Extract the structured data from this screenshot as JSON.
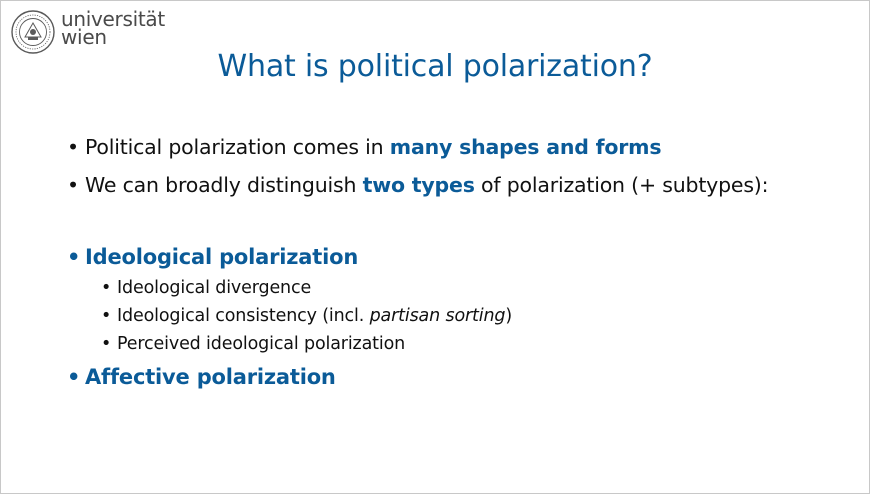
{
  "logo": {
    "line1": "universität",
    "line2": "wien"
  },
  "title": "What is political polarization?",
  "bullets": [
    {
      "pre": "Political polarization comes in ",
      "highlight": "many shapes and forms",
      "post": ""
    },
    {
      "pre": "We can broadly distinguish ",
      "highlight": "two types",
      "post": " of polarization (+ subtypes):"
    }
  ],
  "types": [
    {
      "heading": "Ideological polarization",
      "subitems": [
        {
          "pre": "Ideological divergence",
          "em": "",
          "post": ""
        },
        {
          "pre": "Ideological consistency (incl. ",
          "em": "partisan sorting",
          "post": ")"
        },
        {
          "pre": "Perceived ideological polarization",
          "em": "",
          "post": ""
        }
      ]
    },
    {
      "heading": "Affective polarization",
      "subitems": []
    }
  ],
  "colors": {
    "accent": "#0b5b98",
    "text": "#111111",
    "logo_text": "#4a4a4a"
  },
  "bullet_glyph": "•",
  "icons": [
    "university-seal-logo"
  ]
}
